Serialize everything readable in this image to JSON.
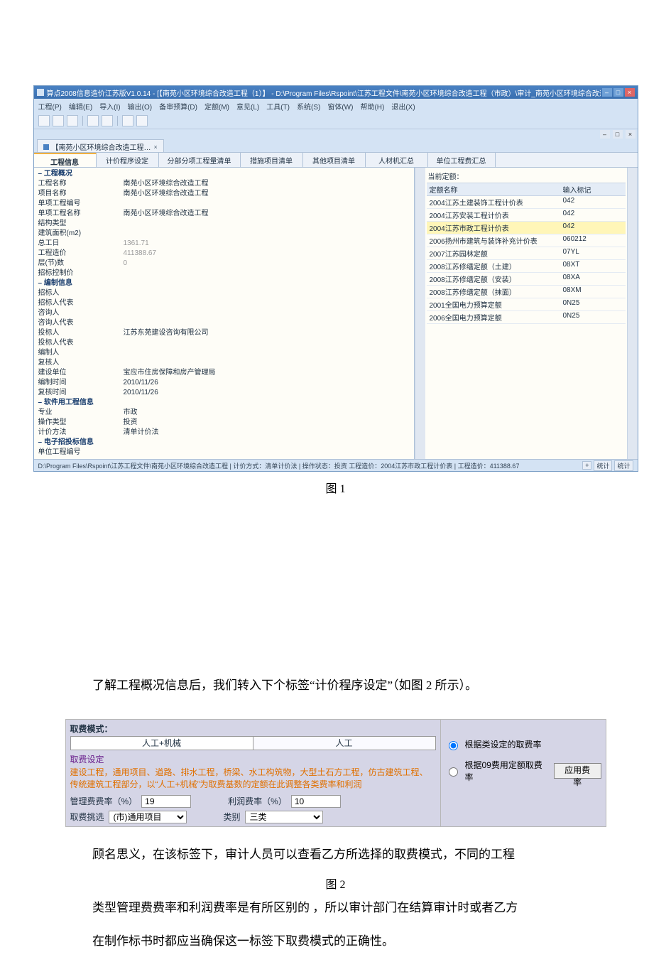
{
  "fig1": {
    "title": "算点2008信息造价江苏版V1.0.14 - [【南苑小区环境综合改造工程（1）】 - D:\\Program Files\\Rspoint\\江苏工程文件\\南苑小区环境综合改造工程（市政）\\审计_南苑小区环境综合改造工程（市政）...]",
    "window_buttons": {
      "min": "–",
      "max": "□",
      "close": "×"
    },
    "menus": [
      "工程(P)",
      "编辑(E)",
      "导入(I)",
      "输出(O)",
      "备审预算(D)",
      "定额(M)",
      "意见(L)",
      "工具(T)",
      "系统(S)",
      "窗体(W)",
      "帮助(H)",
      "退出(X)"
    ],
    "toolbar_icons": [
      "new",
      "open",
      "save",
      "sep",
      "text",
      "settings",
      "sep",
      "pref",
      "help"
    ],
    "doctab": {
      "label": "【南苑小区环境综合改造工程…",
      "close": "×"
    },
    "navtabs": [
      "工程信息",
      "计价程序设定",
      "分部分项工程量清单",
      "措施项目清单",
      "其他项目清单",
      "人材机汇总",
      "单位工程费汇总"
    ],
    "active_navtab": 0,
    "left_props": [
      {
        "type": "section",
        "k": "– 工程概况"
      },
      {
        "k": "工程名称",
        "v": "南苑小区环境综合改造工程"
      },
      {
        "k": "项目名称",
        "v": "南苑小区环境综合改造工程"
      },
      {
        "k": "单项工程编号",
        "v": ""
      },
      {
        "k": "单项工程名称",
        "v": "南苑小区环境综合改造工程"
      },
      {
        "k": "结构类型",
        "v": ""
      },
      {
        "k": "建筑面积(m2)",
        "v": ""
      },
      {
        "k": "总工日",
        "v": "1361.71",
        "gray": true
      },
      {
        "k": "工程造价",
        "v": "411388.67",
        "gray": true
      },
      {
        "k": "层(节)数",
        "v": "0",
        "gray": true
      },
      {
        "k": "招标控制价",
        "v": ""
      },
      {
        "type": "section",
        "k": "– 编制信息"
      },
      {
        "k": "招标人",
        "v": ""
      },
      {
        "k": "招标人代表",
        "v": ""
      },
      {
        "k": "咨询人",
        "v": ""
      },
      {
        "k": "咨询人代表",
        "v": ""
      },
      {
        "k": "投标人",
        "v": "江苏东苑建设咨询有限公司"
      },
      {
        "k": "投标人代表",
        "v": ""
      },
      {
        "k": "编制人",
        "v": ""
      },
      {
        "k": "复核人",
        "v": ""
      },
      {
        "k": "建设单位",
        "v": "宝应市住房保障和房产管理局"
      },
      {
        "k": "编制时间",
        "v": "2010/11/26"
      },
      {
        "k": "复核时间",
        "v": "2010/11/26"
      },
      {
        "type": "section",
        "k": "– 软件用工程信息"
      },
      {
        "k": "专业",
        "v": "市政"
      },
      {
        "k": "操作类型",
        "v": "投资"
      },
      {
        "k": "计价方法",
        "v": "清单计价法"
      },
      {
        "type": "section",
        "k": "– 电子招投标信息"
      },
      {
        "k": "单位工程编号",
        "v": "",
        "gray": true
      }
    ],
    "right": {
      "header": "当前定额：",
      "cols": [
        "定额名称",
        "输入标记"
      ],
      "rows": [
        {
          "n": "2004江苏土建装饰工程计价表",
          "c": "042"
        },
        {
          "n": "2004江苏安装工程计价表",
          "c": "042"
        },
        {
          "n": "2004江苏市政工程计价表",
          "c": "042",
          "hl": true
        },
        {
          "n": "2006扬州市建筑与装饰补充计价表",
          "c": "060212"
        },
        {
          "n": "2007江苏园林定额",
          "c": "07YL"
        },
        {
          "n": "2008江苏修缮定额（土建）",
          "c": "08XT"
        },
        {
          "n": "2008江苏修缮定额（安装）",
          "c": "08XA"
        },
        {
          "n": "2008江苏修缮定额（抹面）",
          "c": "08XM"
        },
        {
          "n": "2001全国电力预算定额",
          "c": "0N25"
        },
        {
          "n": "2006全国电力预算定额",
          "c": "0N25"
        }
      ]
    },
    "status": "D:\\Program Files\\Rspoint\\江苏工程文件\\南苑小区环境综合改造工程 | 计价方式：清单计价法 | 操作状态：投资 工程造价：2004江苏市政工程计价表 | 工程造价：411388.67",
    "status_chips": [
      "+",
      "统计",
      "统计"
    ]
  },
  "labels": {
    "fig1": "图 1",
    "fig2": "图 2"
  },
  "text1": "了解工程概况信息后，我们转入下个标签“计价程序设定”（如图 2 所示）。",
  "fig2": {
    "mode_label": "取费模式：",
    "tabs": [
      "人工+机械",
      "人工"
    ],
    "active_tab": 0,
    "fee_set_label": "取费设定",
    "fee_desc_line1": "建设工程，通用项目、道路、排水工程，桥梁、水工构筑物，大型土石方工程，仿古建筑工程、",
    "fee_desc_line2": "传统建筑工程部分，以“人工+机械”为取费基数的定额在此调整各类费率和利润",
    "mgmt_rate_label": "管理费费率（%）",
    "mgmt_rate_value": "19",
    "profit_rate_label": "利润费率（%）",
    "profit_rate_value": "10",
    "select_label": "取费挑选",
    "select_value": "(市)通用项目",
    "class_label": "类别",
    "class_value": "三类",
    "radio1": "根据类设定的取费率",
    "radio2": "根据09费用定额取费率",
    "apply_btn": "应用费率"
  },
  "para1": "顾名思义，在该标签下，审计人员可以查看乙方所选择的取费模式，不同的工程",
  "para2": "类型管理费费率和利润费率是有所区别的 ，所以审计部门在结算审计时或者乙方",
  "para3": "在制作标书时都应当确保这一标签下取费模式的正确性。"
}
